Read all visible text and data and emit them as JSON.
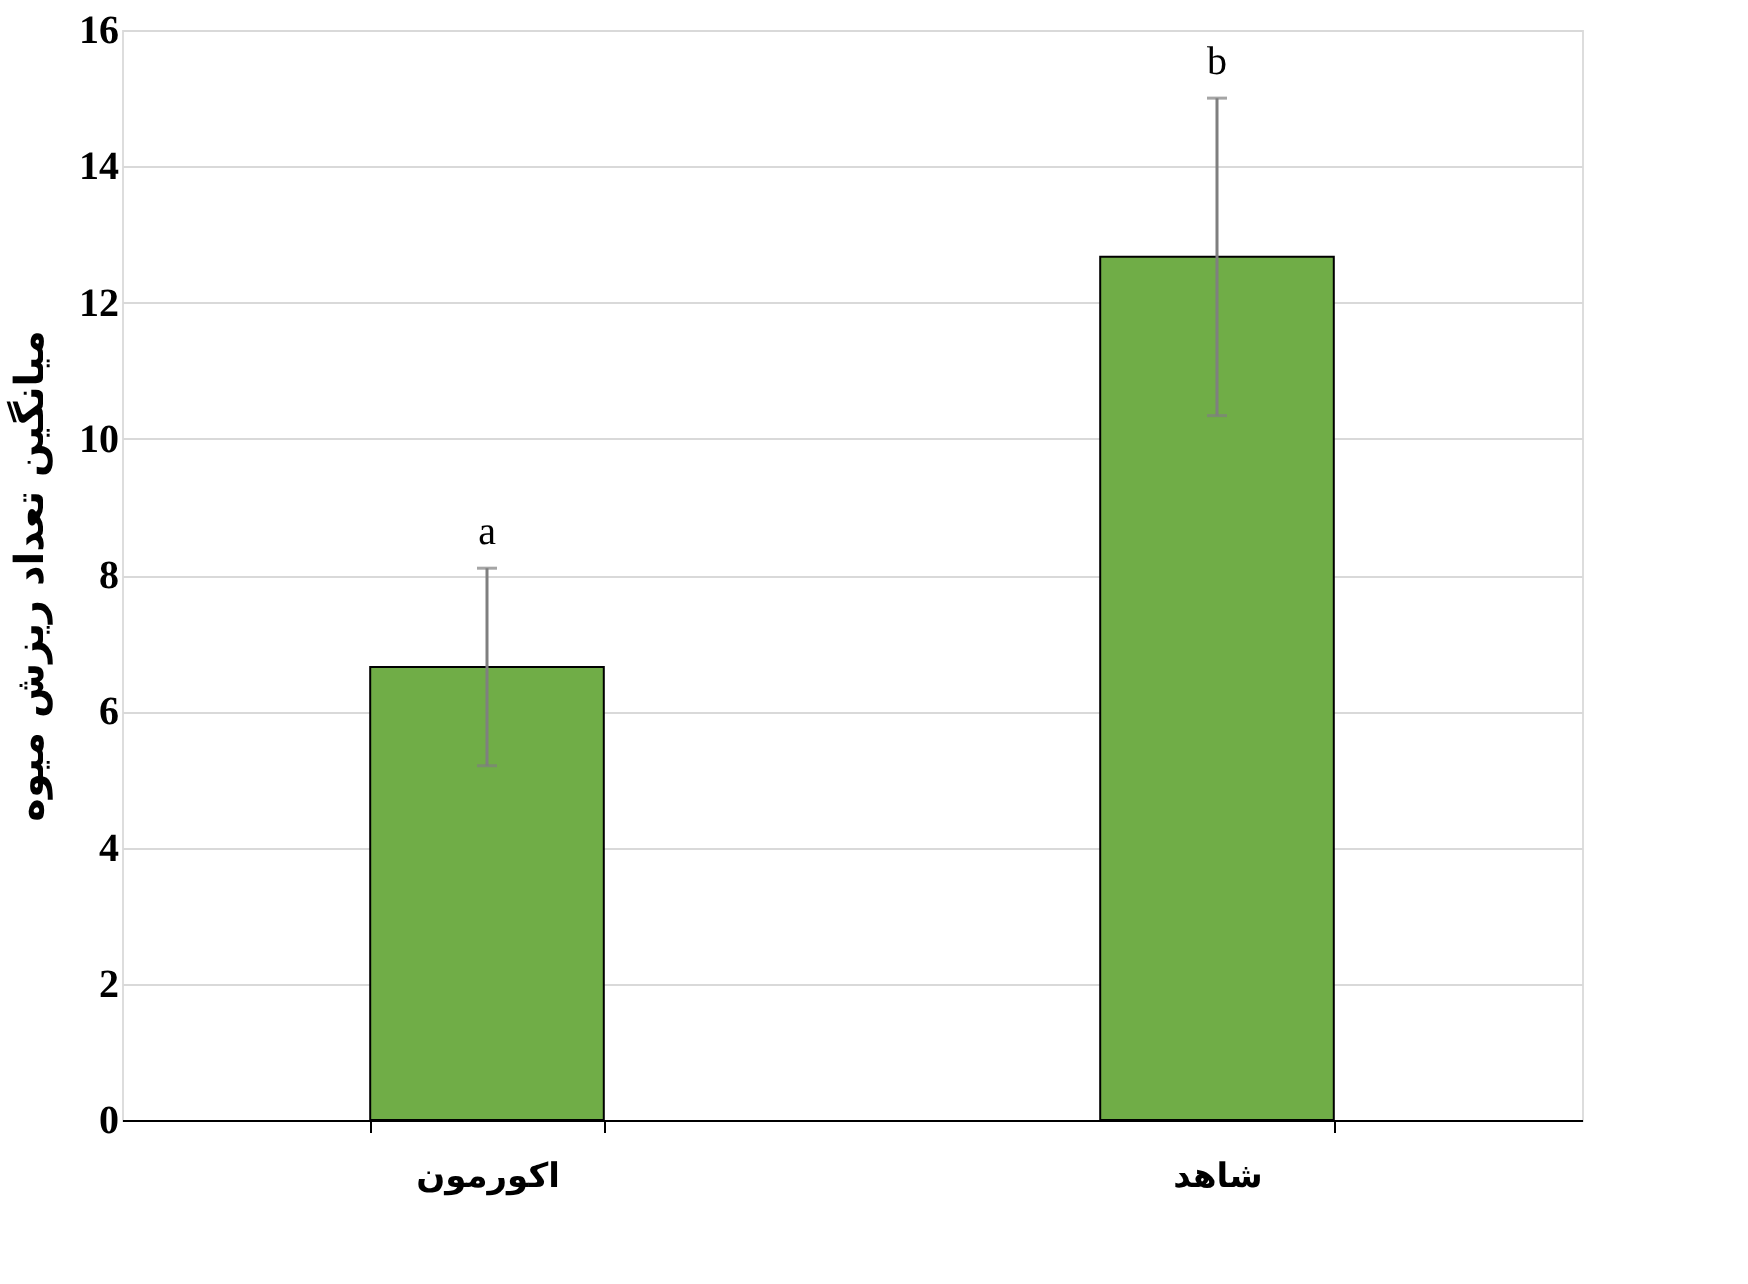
{
  "chart_data": {
    "type": "bar",
    "ylabel": "میانگین تعداد ریزش میوه",
    "categories": [
      "اکورمون",
      "شاهد"
    ],
    "values": [
      6.65,
      12.67
    ],
    "color": "#70ad47",
    "errors": [
      1.45,
      2.33
    ],
    "ylim": [
      0,
      16
    ],
    "yticks": [
      0,
      2,
      4,
      6,
      8,
      10,
      12,
      14,
      16
    ],
    "grid": "y",
    "annotations": [
      "a",
      "b"
    ]
  }
}
